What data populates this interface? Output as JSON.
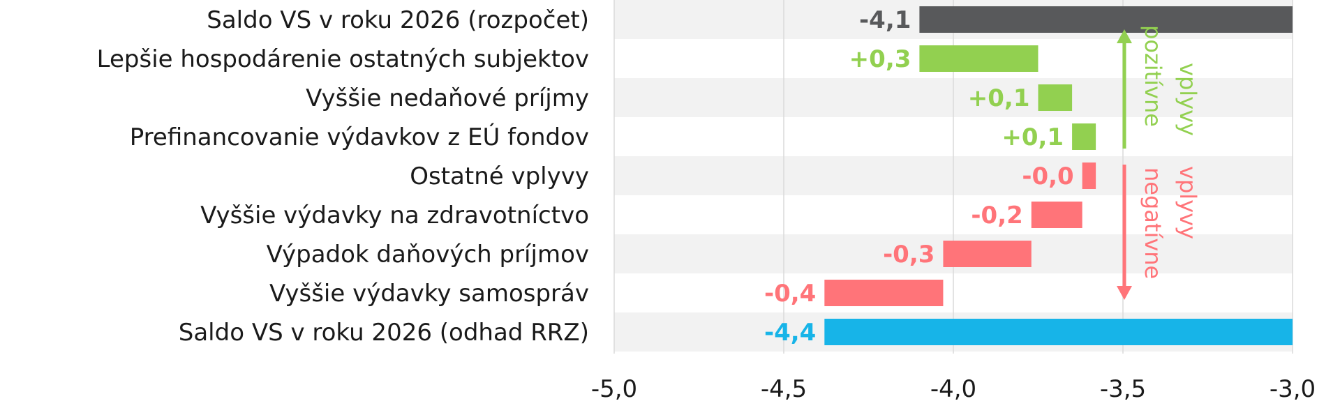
{
  "chart_data": {
    "type": "bar",
    "subtype": "waterfall-horizontal",
    "xlim": [
      -5.0,
      -3.0
    ],
    "x_ticks": [
      -5.0,
      -4.5,
      -4.0,
      -3.5,
      -3.0
    ],
    "x_tick_labels": [
      "-5,0",
      "-4,5",
      "-4,0",
      "-3,5",
      "-3,0"
    ],
    "grid": "vertical",
    "bars": [
      {
        "label": "Saldo VS v roku 2026 (rozpočet)",
        "value_label": "-4,1",
        "value": -4.1,
        "start": -4.1,
        "end": -3.0,
        "kind": "total"
      },
      {
        "label": "Lepšie hospodárenie ostatných subjektov",
        "value_label": "+0,3",
        "value": 0.3,
        "start": -4.1,
        "end": -3.75,
        "kind": "positive"
      },
      {
        "label": "Vyššie nedaňové príjmy",
        "value_label": "+0,1",
        "value": 0.1,
        "start": -3.75,
        "end": -3.65,
        "kind": "positive"
      },
      {
        "label": "Prefinancovanie výdavkov z EÚ fondov",
        "value_label": "+0,1",
        "value": 0.1,
        "start": -3.65,
        "end": -3.58,
        "kind": "positive"
      },
      {
        "label": "Ostatné vplyvy",
        "value_label": "-0,0",
        "value": -0.04,
        "start": -3.62,
        "end": -3.58,
        "kind": "negative"
      },
      {
        "label": "Vyššie výdavky na zdravotníctvo",
        "value_label": "-0,2",
        "value": -0.15,
        "start": -3.77,
        "end": -3.62,
        "kind": "negative"
      },
      {
        "label": "Výpadok daňových príjmov",
        "value_label": "-0,3",
        "value": -0.26,
        "start": -4.03,
        "end": -3.77,
        "kind": "negative"
      },
      {
        "label": "Vyššie výdavky samospráv",
        "value_label": "-0,4",
        "value": -0.35,
        "start": -4.38,
        "end": -4.03,
        "kind": "negative"
      },
      {
        "label": "Saldo VS v roku 2026 (odhad RRZ)",
        "value_label": "-4,4",
        "value": -4.4,
        "start": -4.38,
        "end": -3.0,
        "kind": "final"
      }
    ],
    "annotations": {
      "positive_text_1": "pozitívne",
      "positive_text_2": "vplyvy",
      "negative_text_1": "negatívne",
      "negative_text_2": "vplyvy"
    },
    "colors": {
      "total": "#58595b",
      "positive": "#92d050",
      "negative": "#ff7479",
      "final": "#17b4e8",
      "stripe": "#f2f2f2",
      "grid": "#dadada",
      "text": "#1a1a1a"
    }
  }
}
